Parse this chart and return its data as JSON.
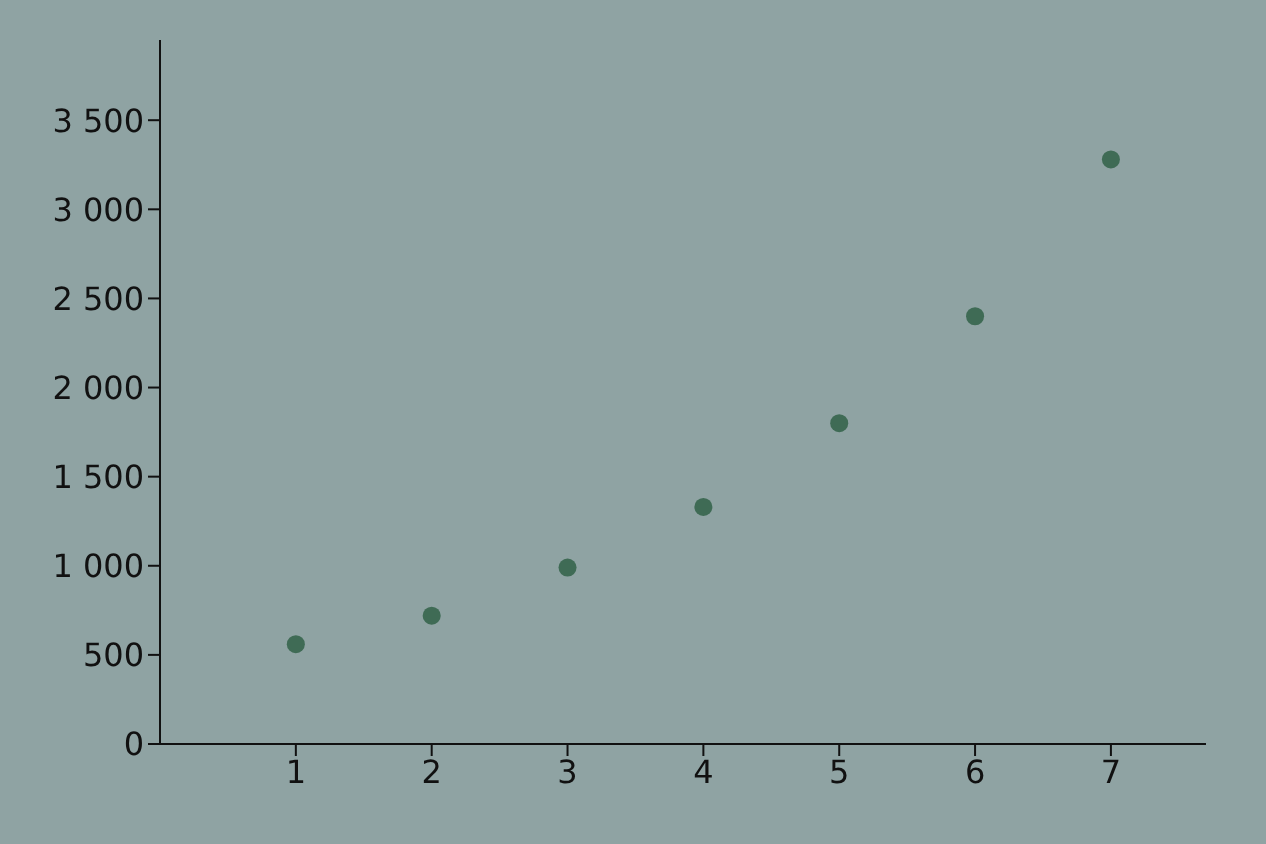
{
  "chart_data": {
    "type": "scatter",
    "x": [
      1,
      2,
      3,
      4,
      5,
      6,
      7
    ],
    "series": [
      {
        "color": "#3f6b55",
        "values": [
          560,
          720,
          990,
          1330,
          1800,
          2400,
          3280
        ]
      }
    ],
    "xlim": [
      0,
      7.7
    ],
    "xticks": [
      1,
      2,
      3,
      4,
      5,
      6,
      7
    ],
    "ylim": [
      0,
      3950
    ],
    "yticks": [
      {
        "value": 0,
        "label": "0"
      },
      {
        "value": 500,
        "label": "500"
      },
      {
        "value": 1000,
        "label": "1 000"
      },
      {
        "value": 1500,
        "label": "1 500"
      },
      {
        "value": 2000,
        "label": "2 000"
      },
      {
        "value": 2500,
        "label": "2 500"
      },
      {
        "value": 3000,
        "label": "3 000"
      },
      {
        "value": 3500,
        "label": "3 500"
      }
    ],
    "grid": false
  }
}
